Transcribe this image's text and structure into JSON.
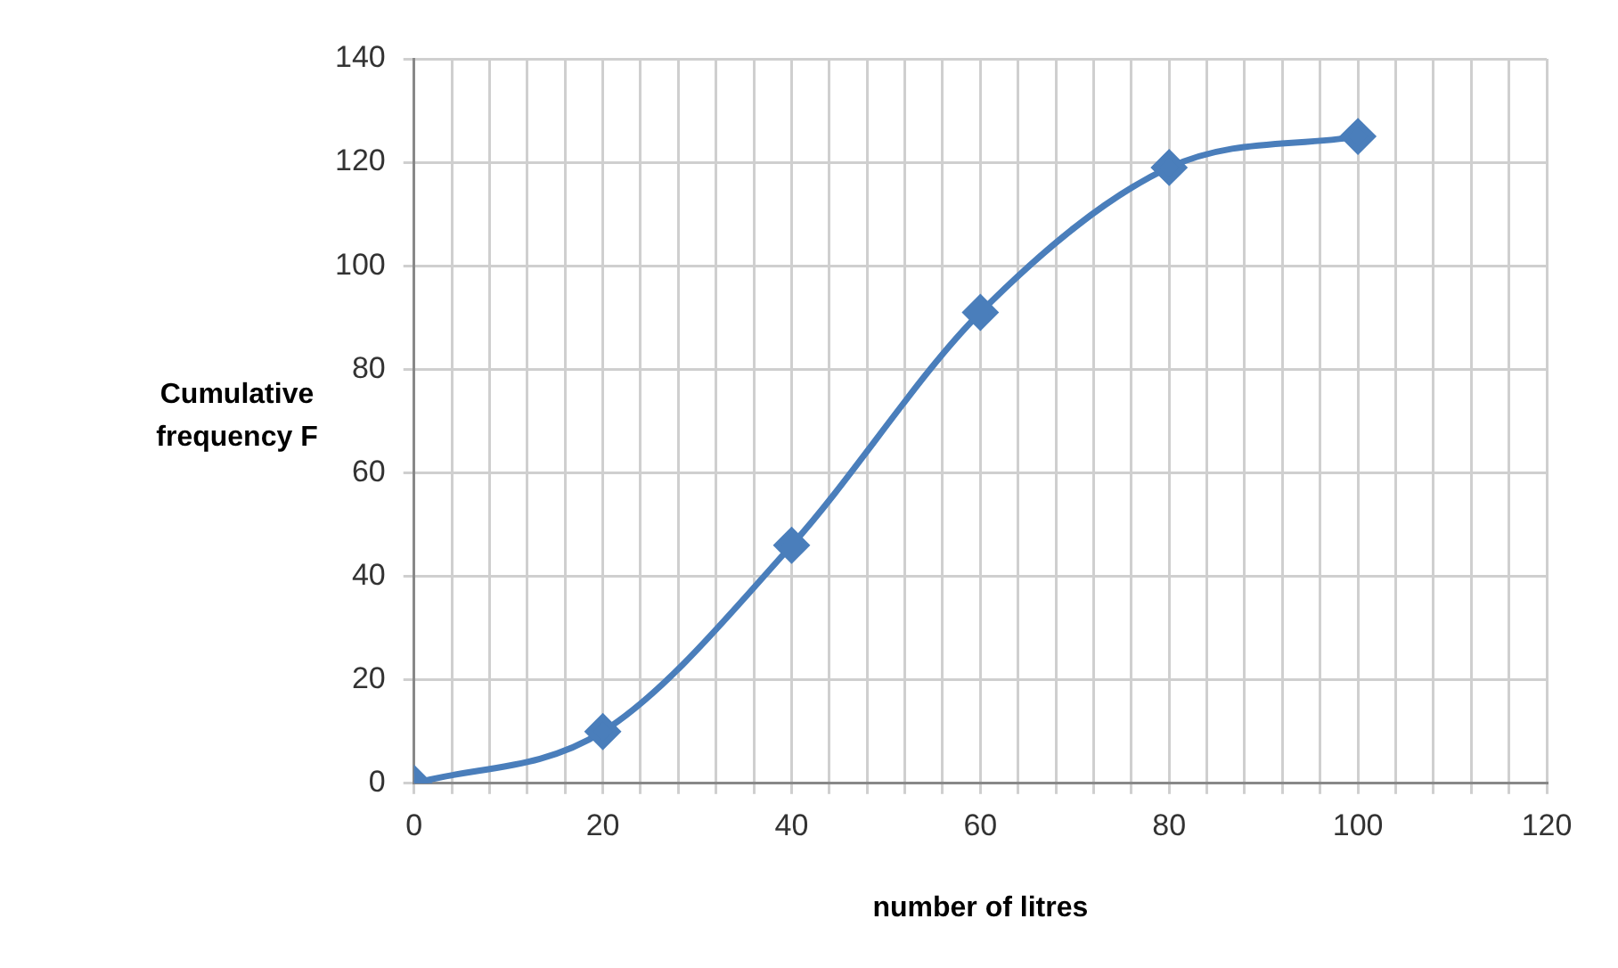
{
  "chart_data": {
    "type": "line",
    "xlabel": "number of litres",
    "ylabel": "Cumulative frequency F",
    "x": [
      0,
      20,
      40,
      60,
      80,
      100
    ],
    "series": [
      {
        "color": "#4a7ebb",
        "values": [
          0,
          10,
          46,
          91,
          119,
          125
        ]
      }
    ],
    "xlim": [
      0,
      120
    ],
    "xticks": [
      0,
      {
        "value": 4,
        "label": null
      },
      {
        "value": 8,
        "label": null
      },
      {
        "value": 12,
        "label": null
      },
      {
        "value": 16,
        "label": null
      },
      20,
      {
        "value": 24,
        "label": null
      },
      {
        "value": 28,
        "label": null
      },
      {
        "value": 32,
        "label": null
      },
      {
        "value": 36,
        "label": null
      },
      40,
      {
        "value": 44,
        "label": null
      },
      {
        "value": 48,
        "label": null
      },
      {
        "value": 52,
        "label": null
      },
      {
        "value": 56,
        "label": null
      },
      60,
      {
        "value": 64,
        "label": null
      },
      {
        "value": 68,
        "label": null
      },
      {
        "value": 72,
        "label": null
      },
      {
        "value": 76,
        "label": null
      },
      80,
      {
        "value": 84,
        "label": null
      },
      {
        "value": 88,
        "label": null
      },
      {
        "value": 92,
        "label": null
      },
      {
        "value": 96,
        "label": null
      },
      100,
      {
        "value": 104,
        "label": null
      },
      {
        "value": 108,
        "label": null
      },
      {
        "value": 112,
        "label": null
      },
      {
        "value": 116,
        "label": null
      },
      120
    ],
    "ylim": [
      0,
      140
    ],
    "yticks": [
      0,
      20,
      40,
      60,
      80,
      100,
      120,
      140
    ],
    "grid": true,
    "marker": "diamond",
    "line_style": "solid",
    "legend": false
  }
}
